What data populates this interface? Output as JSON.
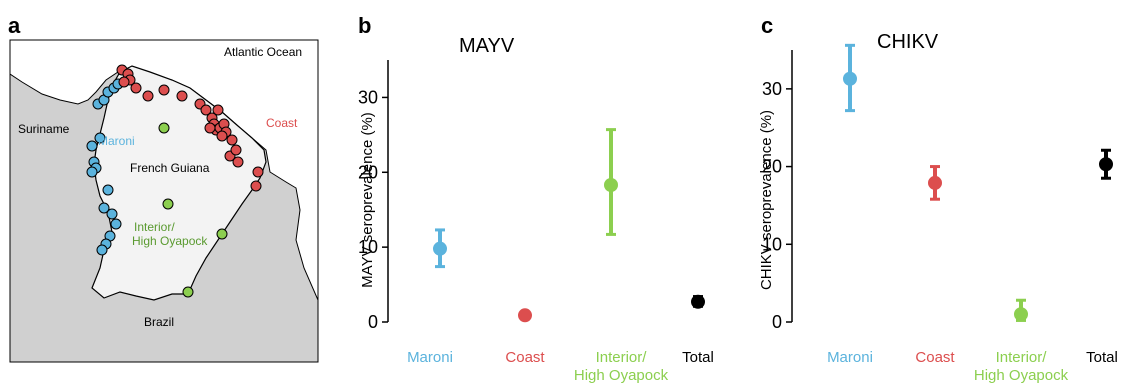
{
  "panels": {
    "a": "a",
    "b": "b",
    "c": "c"
  },
  "colors": {
    "Maroni": "#5bb3dd",
    "Coast": "#dc4e4e",
    "Interior": "#8ccf4f",
    "Total": "#000000"
  },
  "map": {
    "ocean_label": "Atlantic Ocean",
    "suriname_label": "Suriname",
    "guiana_label": "French Guiana",
    "brazil_label": "Brazil",
    "maroni_label": "Maroni",
    "coast_label": "Coast",
    "interior_line1": "Interior/",
    "interior_line2": "High Oyapock"
  },
  "chart_data": [
    {
      "type": "scatter",
      "title": "MAYV",
      "ylabel": "MAYV seroprevalence (%)",
      "ylim": [
        0,
        35
      ],
      "yticks": [
        0,
        10,
        20,
        30
      ],
      "categories": [
        [
          "Maroni"
        ],
        [
          "Coast"
        ],
        [
          "Interior/",
          "High Oyapock"
        ],
        [
          "Total"
        ]
      ],
      "series": [
        {
          "category": "Maroni",
          "value": 9.8,
          "low": 7.4,
          "high": 12.3,
          "color": "#5bb3dd"
        },
        {
          "category": "Coast",
          "value": 0.9,
          "low": 0.6,
          "high": 1.2,
          "color": "#dc4e4e"
        },
        {
          "category": "Interior/High Oyapock",
          "value": 18.3,
          "low": 11.7,
          "high": 25.7,
          "color": "#8ccf4f"
        },
        {
          "category": "Total",
          "value": 2.7,
          "low": 2.1,
          "high": 3.4,
          "color": "#000000"
        }
      ]
    },
    {
      "type": "scatter",
      "title": "CHIKV",
      "ylabel": "CHIKV seroprevalence (%)",
      "ylim": [
        0,
        35
      ],
      "yticks": [
        0,
        10,
        20,
        30
      ],
      "categories": [
        [
          "Maroni"
        ],
        [
          "Coast"
        ],
        [
          "Interior/",
          "High Oyapock"
        ],
        [
          "Total"
        ]
      ],
      "series": [
        {
          "category": "Maroni",
          "value": 31.3,
          "low": 27.2,
          "high": 35.6,
          "color": "#5bb3dd"
        },
        {
          "category": "Coast",
          "value": 17.9,
          "low": 15.8,
          "high": 20.0,
          "color": "#dc4e4e"
        },
        {
          "category": "Interior/High Oyapock",
          "value": 1.0,
          "low": 0.2,
          "high": 2.8,
          "color": "#8ccf4f"
        },
        {
          "category": "Total",
          "value": 20.3,
          "low": 18.5,
          "high": 22.1,
          "color": "#000000"
        }
      ]
    }
  ]
}
